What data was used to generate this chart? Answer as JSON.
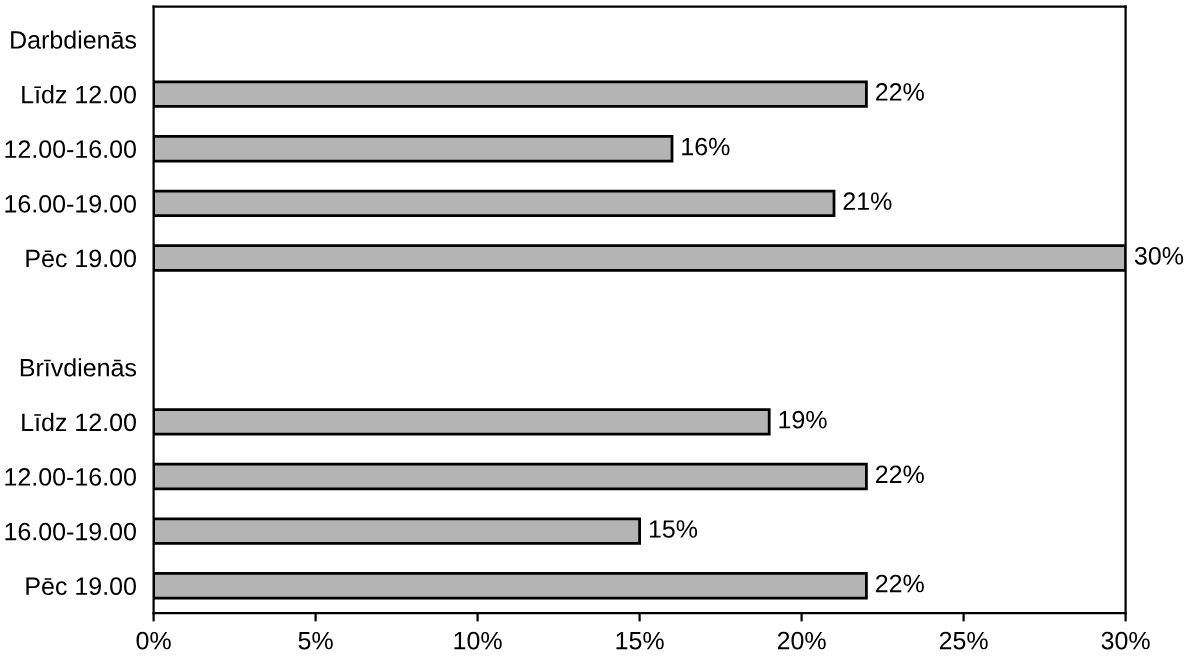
{
  "chart_data": {
    "type": "bar",
    "orientation": "horizontal",
    "categories": [
      "Darbdienās",
      "Līdz 12.00",
      "12.00-16.00",
      "16.00-19.00",
      "Pēc 19.00",
      null,
      "Brīvdienās",
      "Līdz 12.00",
      "12.00-16.00",
      "16.00-19.00",
      "Pēc 19.00"
    ],
    "values": [
      null,
      22,
      16,
      21,
      30,
      null,
      null,
      19,
      22,
      15,
      22
    ],
    "value_labels": [
      null,
      "22%",
      "16%",
      "21%",
      "30%",
      null,
      null,
      "19%",
      "22%",
      "15%",
      "22%"
    ],
    "color": "#b4b4b4",
    "xlim": [
      0,
      30
    ],
    "xticks": [
      {
        "value": 0,
        "label": "0%"
      },
      {
        "value": 5,
        "label": "5%"
      },
      {
        "value": 10,
        "label": "10%"
      },
      {
        "value": 15,
        "label": "15%"
      },
      {
        "value": 20,
        "label": "20%"
      },
      {
        "value": 25,
        "label": "25%"
      },
      {
        "value": 30,
        "label": "30%"
      }
    ],
    "grid": false,
    "legend": false
  }
}
